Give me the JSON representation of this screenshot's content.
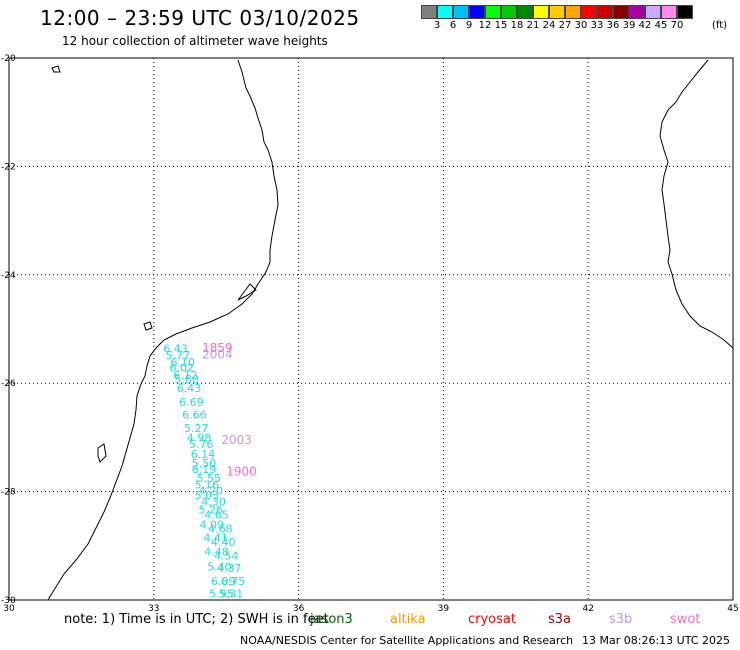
{
  "header": {
    "title": "12:00 – 23:59 UTC 03/10/2025",
    "subtitle": "12 hour collection of altimeter wave heights"
  },
  "legend": {
    "colors": [
      "#808080",
      "#00ffff",
      "#00bfff",
      "#0000ff",
      "#00ff00",
      "#00cc00",
      "#008800",
      "#ffff00",
      "#ffcc00",
      "#ffa500",
      "#ff0000",
      "#cc0000",
      "#880000",
      "#aa00aa",
      "#ccaaff",
      "#ff88ee",
      "#000000"
    ],
    "ticks": [
      "3",
      "6",
      "9",
      "12",
      "15",
      "18",
      "21",
      "24",
      "27",
      "30",
      "33",
      "36",
      "39",
      "42",
      "45",
      "70"
    ],
    "unit": "(ft)"
  },
  "map": {
    "lon_range": [
      30,
      45
    ],
    "lat_range": [
      -30,
      -20
    ],
    "lon_ticks": [
      30,
      33,
      36,
      39,
      42,
      45
    ],
    "lat_ticks": [
      -20,
      -22,
      -24,
      -26,
      -28,
      -30
    ],
    "x_tick_labels": [
      "30",
      "33",
      "36",
      "39",
      "42",
      "45"
    ],
    "y_tick_labels": [
      "-20",
      "-22",
      "-24",
      "-26",
      "-28",
      "-30"
    ],
    "grid": "dotted"
  },
  "observations": [
    {
      "lon": 33.45,
      "lat": -25.43,
      "value": "6.43",
      "sat": "jason3"
    },
    {
      "lon": 33.5,
      "lat": -25.55,
      "value": "5.77",
      "sat": "jason3"
    },
    {
      "lon": 33.6,
      "lat": -25.68,
      "value": "6.10",
      "sat": "jason3"
    },
    {
      "lon": 33.58,
      "lat": -25.78,
      "value": "6.02",
      "sat": "jason3"
    },
    {
      "lon": 33.66,
      "lat": -25.92,
      "value": "6.12",
      "sat": "jason3"
    },
    {
      "lon": 33.68,
      "lat": -26.0,
      "value": "5.80",
      "sat": "jason3"
    },
    {
      "lon": 33.73,
      "lat": -26.16,
      "value": "6.43",
      "sat": "jason3"
    },
    {
      "lon": 33.78,
      "lat": -26.42,
      "value": "6.69",
      "sat": "jason3"
    },
    {
      "lon": 33.84,
      "lat": -26.65,
      "value": "6.66",
      "sat": "jason3"
    },
    {
      "lon": 33.88,
      "lat": -26.9,
      "value": "5.27",
      "sat": "jason3"
    },
    {
      "lon": 33.94,
      "lat": -27.08,
      "value": "4.98",
      "sat": "jason3"
    },
    {
      "lon": 33.98,
      "lat": -27.2,
      "value": "5.76",
      "sat": "jason3"
    },
    {
      "lon": 34.02,
      "lat": -27.38,
      "value": "6.14",
      "sat": "jason3"
    },
    {
      "lon": 34.04,
      "lat": -27.55,
      "value": "5.50",
      "sat": "jason3"
    },
    {
      "lon": 34.04,
      "lat": -27.66,
      "value": "6.19",
      "sat": "jason3"
    },
    {
      "lon": 34.14,
      "lat": -27.82,
      "value": "5.55",
      "sat": "jason3"
    },
    {
      "lon": 34.1,
      "lat": -27.94,
      "value": "5.16",
      "sat": "jason3"
    },
    {
      "lon": 34.18,
      "lat": -28.05,
      "value": "4.20",
      "sat": "jason3"
    },
    {
      "lon": 34.1,
      "lat": -28.14,
      "value": "5.03",
      "sat": "jason3"
    },
    {
      "lon": 34.24,
      "lat": -28.26,
      "value": "4.30",
      "sat": "jason3"
    },
    {
      "lon": 34.18,
      "lat": -28.4,
      "value": "5.26",
      "sat": "jason3"
    },
    {
      "lon": 34.3,
      "lat": -28.5,
      "value": "4.65",
      "sat": "jason3"
    },
    {
      "lon": 34.2,
      "lat": -28.68,
      "value": "4.09",
      "sat": "jason3"
    },
    {
      "lon": 34.38,
      "lat": -28.75,
      "value": "4.68",
      "sat": "jason3"
    },
    {
      "lon": 34.28,
      "lat": -28.92,
      "value": "4.41",
      "sat": "jason3"
    },
    {
      "lon": 34.44,
      "lat": -29.0,
      "value": "4.40",
      "sat": "jason3"
    },
    {
      "lon": 34.3,
      "lat": -29.18,
      "value": "4.48",
      "sat": "jason3"
    },
    {
      "lon": 34.5,
      "lat": -29.25,
      "value": "4.54",
      "sat": "jason3"
    },
    {
      "lon": 34.36,
      "lat": -29.46,
      "value": "5.40",
      "sat": "jason3"
    },
    {
      "lon": 34.56,
      "lat": -29.48,
      "value": "4.37",
      "sat": "jason3"
    },
    {
      "lon": 34.44,
      "lat": -29.72,
      "value": "6.09",
      "sat": "jason3"
    },
    {
      "lon": 34.64,
      "lat": -29.72,
      "value": "6.75",
      "sat": "jason3"
    },
    {
      "lon": 34.4,
      "lat": -29.95,
      "value": "5.95",
      "sat": "jason3"
    },
    {
      "lon": 34.6,
      "lat": -29.95,
      "value": "5.31",
      "sat": "jason3"
    }
  ],
  "time_labels": [
    {
      "lon": 34.0,
      "lat": -25.42,
      "text": "1859",
      "color": "#ff66cc"
    },
    {
      "lon": 34.0,
      "lat": -25.54,
      "text": "2004",
      "color": "#bb99ee"
    },
    {
      "lon": 34.4,
      "lat": -27.12,
      "text": "2003",
      "color": "#bb99ee"
    },
    {
      "lon": 34.5,
      "lat": -27.7,
      "text": "1900",
      "color": "#ff66cc"
    }
  ],
  "footer": {
    "note": "note: 1) Time is in UTC; 2) SWH is in feet",
    "satellites": [
      {
        "name": "jason3",
        "color": "#006600"
      },
      {
        "name": "altika",
        "color": "#ff9900"
      },
      {
        "name": "cryosat",
        "color": "#ff0000"
      },
      {
        "name": "s3a",
        "color": "#990000"
      },
      {
        "name": "s3b",
        "color": "#bb99ee"
      },
      {
        "name": "swot",
        "color": "#ff66cc"
      }
    ],
    "credit": "NOAA/NESDIS Center for Satellite Applications and Research",
    "timestamp": "13 Mar 08:26:13 UTC 2025"
  }
}
